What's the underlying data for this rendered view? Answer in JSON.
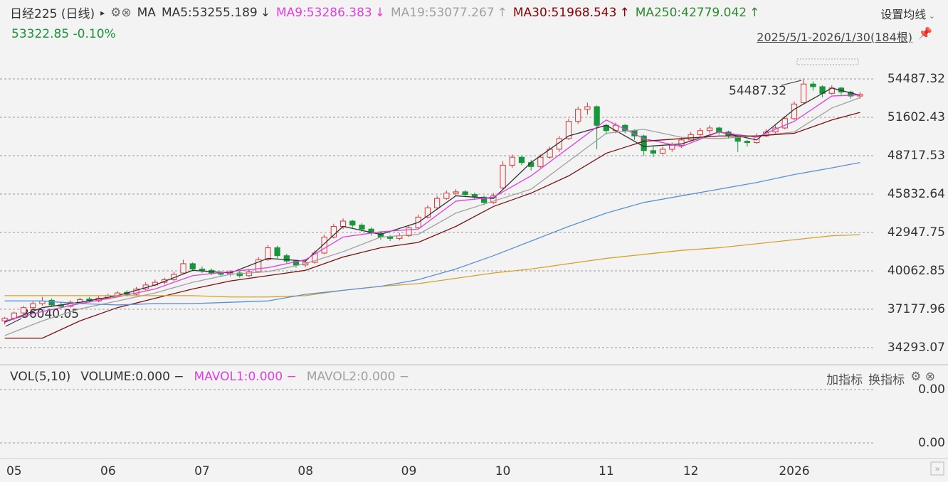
{
  "chart_data": {
    "type": "candlestick",
    "title": "日经225 (日线)",
    "indicator": "MA",
    "last_price": "53322.85",
    "change": "-0.10%",
    "settings_label": "设置均线",
    "range_label": "2025/5/1-2026/1/30(184根)",
    "annotations": [
      "54487.32",
      "36040.05"
    ],
    "up_color": "#e03535",
    "down_color": "#17963a",
    "ylim": [
      33170,
      55340
    ],
    "yticks": [
      54487.32,
      51602.43,
      48717.53,
      45832.64,
      42947.75,
      40062.85,
      37177.96,
      34293.07
    ],
    "xlim": [
      -0.5,
      91.5
    ],
    "xticks": [
      {
        "value": 1,
        "label": "05"
      },
      {
        "value": 11,
        "label": "06"
      },
      {
        "value": 21,
        "label": "07"
      },
      {
        "value": 32,
        "label": "08"
      },
      {
        "value": 43,
        "label": "09"
      },
      {
        "value": 53,
        "label": "10"
      },
      {
        "value": 64,
        "label": "11"
      },
      {
        "value": 73,
        "label": "12"
      },
      {
        "value": 84,
        "label": "2026"
      }
    ],
    "grid": true,
    "candles": [
      [
        36300,
        36600,
        36040.05,
        36500
      ],
      [
        36500,
        37000,
        36350,
        36900
      ],
      [
        36900,
        37450,
        36800,
        37300
      ],
      [
        37300,
        37800,
        37150,
        37600
      ],
      [
        37600,
        38100,
        37450,
        37800
      ],
      [
        37850,
        38000,
        37350,
        37500
      ],
      [
        37500,
        37700,
        37250,
        37400
      ],
      [
        37400,
        37850,
        37300,
        37700
      ],
      [
        37700,
        38050,
        37600,
        37900
      ],
      [
        37950,
        38100,
        37700,
        37800
      ],
      [
        37800,
        38200,
        37700,
        38000
      ],
      [
        38000,
        38350,
        37900,
        38200
      ],
      [
        38200,
        38550,
        38100,
        38400
      ],
      [
        38450,
        38600,
        38150,
        38300
      ],
      [
        38300,
        38850,
        38200,
        38700
      ],
      [
        38700,
        39200,
        38600,
        39000
      ],
      [
        39000,
        39400,
        38900,
        39200
      ],
      [
        39200,
        39550,
        39050,
        39400
      ],
      [
        39400,
        40000,
        39300,
        39800
      ],
      [
        39900,
        40900,
        39800,
        40600
      ],
      [
        40600,
        40700,
        40050,
        40200
      ],
      [
        40200,
        40400,
        39900,
        40100
      ],
      [
        40100,
        40250,
        39750,
        39900
      ],
      [
        39900,
        40050,
        39600,
        39800
      ],
      [
        39800,
        40100,
        39650,
        39900
      ],
      [
        39900,
        40050,
        39550,
        39700
      ],
      [
        39700,
        40200,
        39600,
        40000
      ],
      [
        40000,
        41100,
        39900,
        40900
      ],
      [
        40900,
        42000,
        40800,
        41800
      ],
      [
        41800,
        41950,
        41000,
        41200
      ],
      [
        41200,
        41350,
        40650,
        40800
      ],
      [
        40800,
        40900,
        40300,
        40500
      ],
      [
        40500,
        40900,
        40350,
        40700
      ],
      [
        40700,
        41600,
        40600,
        41400
      ],
      [
        41400,
        42800,
        41300,
        42600
      ],
      [
        42600,
        43600,
        42500,
        43400
      ],
      [
        43400,
        44000,
        43200,
        43800
      ],
      [
        43800,
        43900,
        43300,
        43500
      ],
      [
        43500,
        43650,
        43000,
        43200
      ],
      [
        43200,
        43350,
        42700,
        42900
      ],
      [
        42900,
        43000,
        42400,
        42600
      ],
      [
        42600,
        42750,
        42300,
        42500
      ],
      [
        42500,
        42900,
        42350,
        42700
      ],
      [
        42700,
        43500,
        42600,
        43300
      ],
      [
        43300,
        44300,
        43200,
        44100
      ],
      [
        44100,
        45000,
        44000,
        44800
      ],
      [
        44800,
        45700,
        44700,
        45500
      ],
      [
        45500,
        46100,
        45400,
        45900
      ],
      [
        45900,
        46200,
        45700,
        46000
      ],
      [
        46000,
        46150,
        45600,
        45800
      ],
      [
        45800,
        45950,
        45400,
        45600
      ],
      [
        45600,
        45700,
        45000,
        45200
      ],
      [
        45200,
        45900,
        45100,
        45700
      ],
      [
        46300,
        48300,
        46200,
        48000
      ],
      [
        48000,
        48800,
        47800,
        48600
      ],
      [
        48600,
        48700,
        48000,
        48200
      ],
      [
        48200,
        48400,
        47600,
        47900
      ],
      [
        47900,
        48800,
        47800,
        48600
      ],
      [
        48600,
        49400,
        48500,
        49200
      ],
      [
        49200,
        50200,
        49000,
        50000
      ],
      [
        50000,
        51500,
        49900,
        51300
      ],
      [
        51300,
        52400,
        51100,
        52200
      ],
      [
        52200,
        52700,
        51800,
        52400
      ],
      [
        52400,
        52500,
        49200,
        51000
      ],
      [
        51000,
        51100,
        50300,
        50600
      ],
      [
        50600,
        51200,
        50400,
        51000
      ],
      [
        51000,
        51100,
        50400,
        50600
      ],
      [
        50600,
        50700,
        49900,
        50200
      ],
      [
        50200,
        50300,
        48700,
        49100
      ],
      [
        49100,
        49400,
        48600,
        48900
      ],
      [
        48900,
        49400,
        48800,
        49200
      ],
      [
        49200,
        49700,
        49000,
        49500
      ],
      [
        49500,
        50100,
        49300,
        49900
      ],
      [
        49900,
        50500,
        49800,
        50300
      ],
      [
        50300,
        50800,
        50100,
        50600
      ],
      [
        50600,
        51000,
        50400,
        50800
      ],
      [
        50800,
        50900,
        50300,
        50500
      ],
      [
        50500,
        50600,
        50000,
        50200
      ],
      [
        50200,
        50300,
        49000,
        49800
      ],
      [
        49800,
        49900,
        49400,
        49700
      ],
      [
        49700,
        50400,
        49600,
        50200
      ],
      [
        50200,
        50700,
        50100,
        50500
      ],
      [
        50500,
        51000,
        50400,
        50800
      ],
      [
        50800,
        51700,
        50700,
        51500
      ],
      [
        51500,
        52800,
        51400,
        52600
      ],
      [
        52700,
        54487.32,
        52600,
        54100
      ],
      [
        54100,
        54300,
        53600,
        53900
      ],
      [
        53900,
        54000,
        53100,
        53400
      ],
      [
        53400,
        54000,
        53300,
        53800
      ],
      [
        53800,
        53900,
        53300,
        53500
      ],
      [
        53500,
        53600,
        53000,
        53200
      ],
      [
        53200,
        53500,
        53000,
        53322.85
      ]
    ],
    "ma_x": [
      0,
      4,
      8,
      12,
      16,
      20,
      24,
      28,
      32,
      36,
      40,
      44,
      48,
      52,
      56,
      60,
      64,
      68,
      72,
      76,
      80,
      84,
      88,
      91
    ],
    "series": [
      {
        "name": "MA5:53255.189",
        "trend": "↓",
        "color": "#333333",
        "text_color": "#333333",
        "values": [
          36200,
          37300,
          37700,
          38200,
          39000,
          40100,
          39900,
          41000,
          40800,
          43400,
          42800,
          43700,
          45700,
          45500,
          48200,
          50200,
          51000,
          49400,
          49600,
          50500,
          49900,
          52200,
          53800,
          53255.189
        ]
      },
      {
        "name": "MA9:53286.383",
        "trend": "↓",
        "color": "#e040e0",
        "text_color": "#e040e0",
        "values": [
          36300,
          37000,
          37600,
          38100,
          38700,
          39700,
          40000,
          40300,
          40900,
          42600,
          43000,
          43200,
          45300,
          45600,
          47200,
          49300,
          51400,
          50000,
          49400,
          50500,
          50100,
          51300,
          53200,
          53286.383
        ]
      },
      {
        "name": "MA19:53077.267",
        "trend": "↑",
        "color": "#a0a0a0",
        "text_color": "#a0a0a0",
        "values": [
          35200,
          36300,
          37200,
          37800,
          38400,
          39200,
          39800,
          40000,
          40600,
          41500,
          42600,
          42800,
          44400,
          45300,
          46200,
          48300,
          50400,
          50700,
          50100,
          50000,
          50200,
          50500,
          52300,
          53077.267
        ]
      },
      {
        "name": "MA30:51968.543",
        "trend": "↑",
        "color": "#7a1010",
        "text_color": "#8b0000",
        "values": [
          35000,
          35000,
          36300,
          37300,
          38000,
          38700,
          39300,
          39700,
          40100,
          41100,
          41800,
          42200,
          43400,
          44900,
          45900,
          47200,
          48900,
          49800,
          50000,
          50200,
          50200,
          50400,
          51400,
          51968.543
        ]
      },
      {
        "name": "MA250:42779.042",
        "trend": "↑",
        "color": "#d4a22a",
        "text_color": "#2e8b2e",
        "values": [
          38200,
          38200,
          38200,
          38200,
          38200,
          38200,
          38100,
          38100,
          38200,
          38600,
          38900,
          39100,
          39500,
          39900,
          40200,
          40600,
          41000,
          41300,
          41600,
          41800,
          42100,
          42400,
          42700,
          42779.042
        ]
      },
      {
        "color": "#5b8fd6",
        "values": [
          37800,
          37800,
          37600,
          37500,
          37600,
          37600,
          37700,
          37800,
          38300,
          38600,
          38900,
          39400,
          40200,
          41200,
          42300,
          43400,
          44400,
          45200,
          45700,
          46200,
          46700,
          47300,
          47800,
          48200
        ]
      }
    ],
    "volume_panel": {
      "title": "VOL(5,10)",
      "volume": "VOLUME:0.000 −",
      "mavol1": "MAVOL1:0.000 −",
      "mavol2": "MAVOL2:0.000 −",
      "add": "加指标",
      "switch": "换指标",
      "tick_labels": [
        "0.00",
        "0.00"
      ]
    }
  }
}
